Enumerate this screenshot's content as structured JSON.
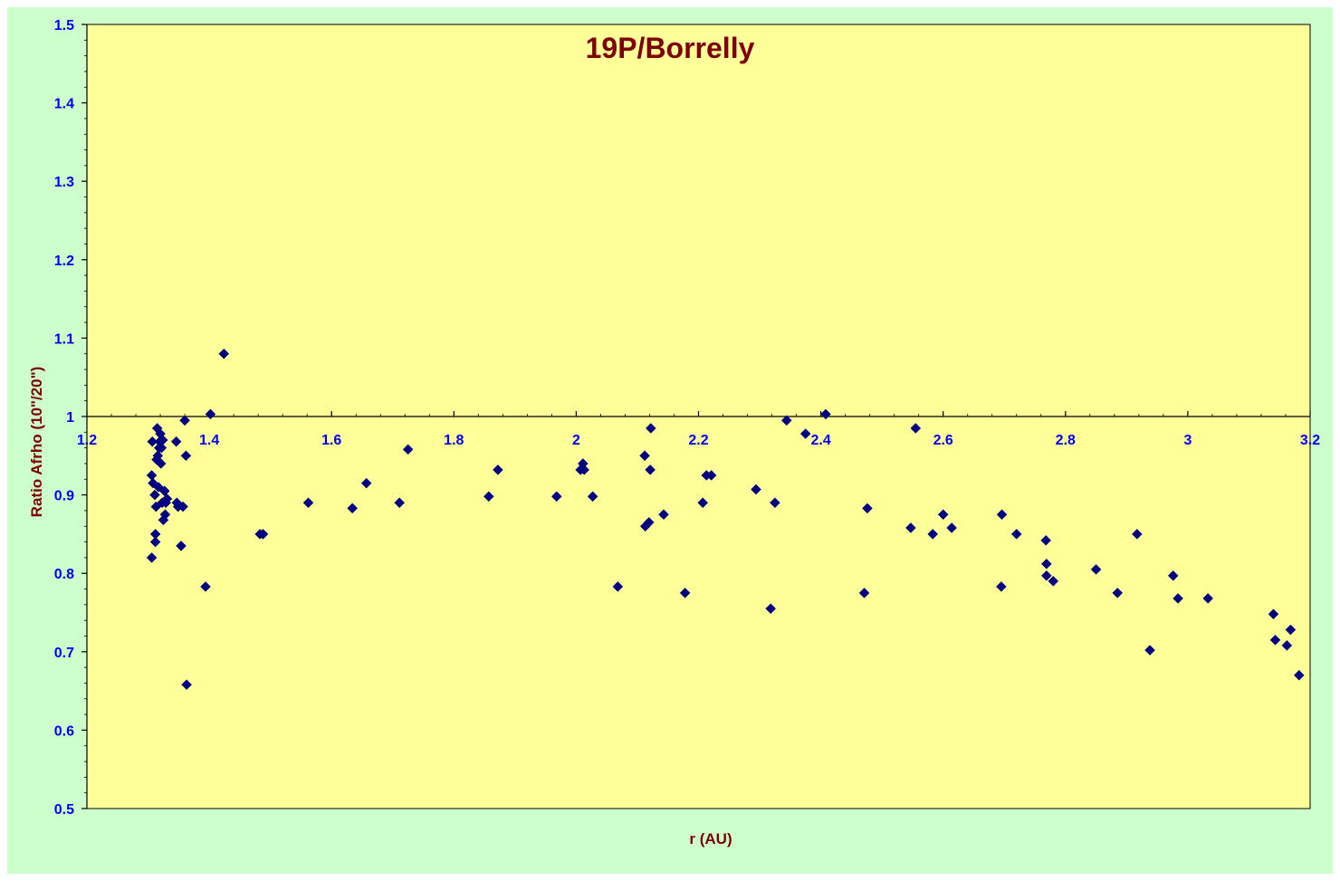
{
  "chart_data": {
    "type": "scatter",
    "title": "19P/Borrelly",
    "xlabel": "r (AU)",
    "ylabel": "Ratio Afrho (10\"/20\")",
    "xlim": [
      1.2,
      3.2
    ],
    "ylim": [
      0.5,
      1.5
    ],
    "x_ticks": [
      "1.2",
      "1.4",
      "1.6",
      "1.8",
      "2",
      "2.2",
      "2.4",
      "2.6",
      "2.8",
      "3",
      "3.2"
    ],
    "y_ticks": [
      "0.5",
      "0.6",
      "0.7",
      "0.8",
      "0.9",
      "1",
      "1.1",
      "1.2",
      "1.3",
      "1.4",
      "1.5"
    ],
    "x_axis_crosses_at": 1.0,
    "grid": false,
    "legend": "none",
    "colors": {
      "outer_background": "#ccffcc",
      "plot_background": "#ffff99",
      "marker": "#000080",
      "tick_labels": "#0000ff",
      "title": "#800000",
      "axis_titles": "#800000"
    },
    "series": [
      {
        "marker": "diamond",
        "points": [
          [
            1.306,
            0.82
          ],
          [
            1.306,
            0.925
          ],
          [
            1.307,
            0.968
          ],
          [
            1.308,
            0.915
          ],
          [
            1.311,
            0.9
          ],
          [
            1.312,
            0.84
          ],
          [
            1.312,
            0.85
          ],
          [
            1.313,
            0.885
          ],
          [
            1.314,
            0.945
          ],
          [
            1.315,
            0.985
          ],
          [
            1.316,
            0.95
          ],
          [
            1.317,
            0.91
          ],
          [
            1.318,
            0.96
          ],
          [
            1.319,
            0.968
          ],
          [
            1.32,
            0.978
          ],
          [
            1.321,
            0.94
          ],
          [
            1.322,
            0.96
          ],
          [
            1.323,
            0.89
          ],
          [
            1.324,
            0.97
          ],
          [
            1.325,
            0.868
          ],
          [
            1.327,
            0.905
          ],
          [
            1.328,
            0.875
          ],
          [
            1.329,
            0.89
          ],
          [
            1.331,
            0.895
          ],
          [
            1.346,
            0.968
          ],
          [
            1.347,
            0.89
          ],
          [
            1.349,
            0.885
          ],
          [
            1.354,
            0.835
          ],
          [
            1.357,
            0.885
          ],
          [
            1.36,
            0.995
          ],
          [
            1.362,
            0.95
          ],
          [
            1.363,
            0.658
          ],
          [
            1.394,
            0.783
          ],
          [
            1.402,
            1.003
          ],
          [
            1.424,
            1.08
          ],
          [
            1.483,
            0.85
          ],
          [
            1.488,
            0.85
          ],
          [
            1.562,
            0.89
          ],
          [
            1.634,
            0.883
          ],
          [
            1.657,
            0.915
          ],
          [
            1.711,
            0.89
          ],
          [
            1.725,
            0.958
          ],
          [
            1.857,
            0.898
          ],
          [
            1.872,
            0.932
          ],
          [
            1.968,
            0.898
          ],
          [
            2.007,
            0.932
          ],
          [
            2.011,
            0.94
          ],
          [
            2.013,
            0.932
          ],
          [
            2.027,
            0.898
          ],
          [
            2.068,
            0.783
          ],
          [
            2.112,
            0.95
          ],
          [
            2.113,
            0.86
          ],
          [
            2.119,
            0.865
          ],
          [
            2.121,
            0.932
          ],
          [
            2.122,
            0.985
          ],
          [
            2.143,
            0.875
          ],
          [
            2.178,
            0.775
          ],
          [
            2.207,
            0.89
          ],
          [
            2.213,
            0.925
          ],
          [
            2.221,
            0.925
          ],
          [
            2.294,
            0.907
          ],
          [
            2.318,
            0.755
          ],
          [
            2.325,
            0.89
          ],
          [
            2.344,
            0.995
          ],
          [
            2.375,
            0.978
          ],
          [
            2.408,
            1.003
          ],
          [
            2.471,
            0.775
          ],
          [
            2.476,
            0.883
          ],
          [
            2.547,
            0.858
          ],
          [
            2.555,
            0.985
          ],
          [
            2.583,
            0.85
          ],
          [
            2.6,
            0.875
          ],
          [
            2.614,
            0.858
          ],
          [
            2.695,
            0.783
          ],
          [
            2.696,
            0.875
          ],
          [
            2.72,
            0.85
          ],
          [
            2.768,
            0.842
          ],
          [
            2.769,
            0.812
          ],
          [
            2.769,
            0.797
          ],
          [
            2.78,
            0.79
          ],
          [
            2.85,
            0.805
          ],
          [
            2.885,
            0.775
          ],
          [
            2.917,
            0.85
          ],
          [
            2.938,
            0.702
          ],
          [
            2.976,
            0.797
          ],
          [
            2.984,
            0.768
          ],
          [
            3.033,
            0.768
          ],
          [
            3.14,
            0.748
          ],
          [
            3.143,
            0.715
          ],
          [
            3.162,
            0.708
          ],
          [
            3.168,
            0.728
          ],
          [
            3.182,
            0.67
          ]
        ]
      }
    ]
  }
}
